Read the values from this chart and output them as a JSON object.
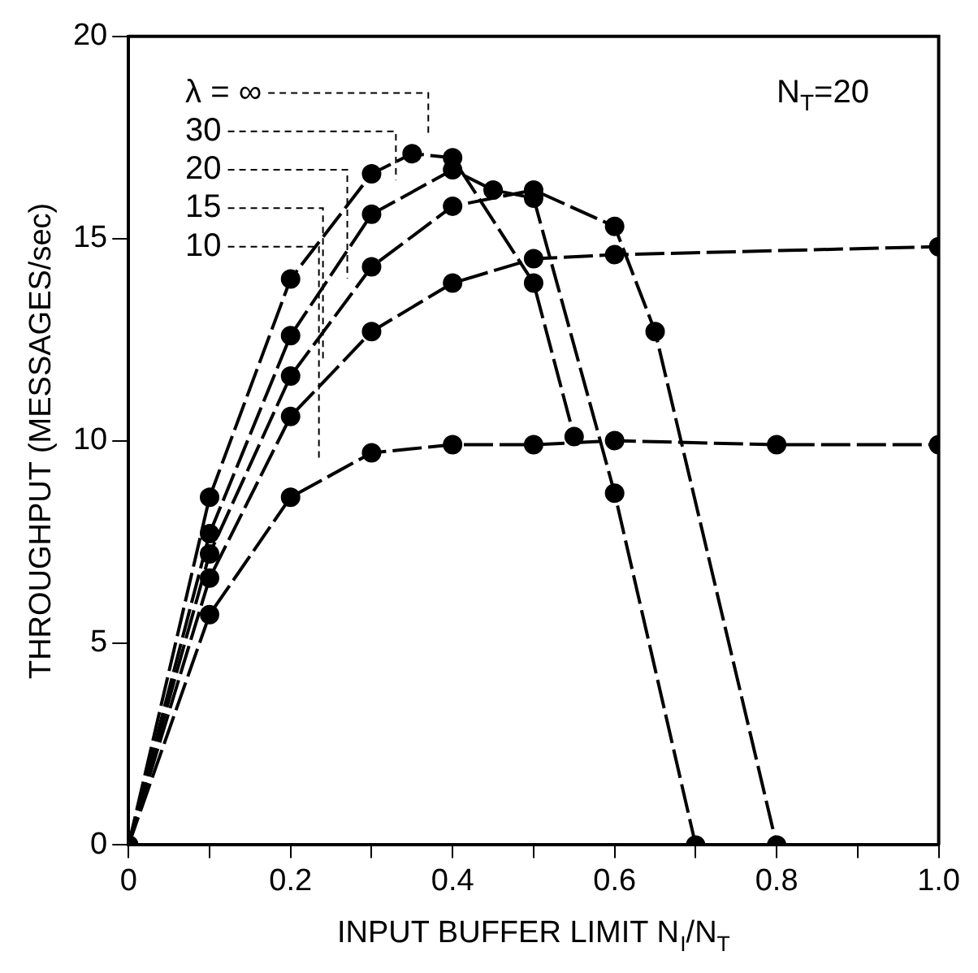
{
  "chart_data": {
    "type": "line",
    "xlabel": "INPUT BUFFER LIMIT N$_{I}$/N$_{T}$",
    "ylabel": "THROUGHPUT (MESSAGES/sec)",
    "annotations": [
      "N$_{T}$=20"
    ],
    "xlim": [
      0,
      1
    ],
    "ylim": [
      0,
      20
    ],
    "xticks": [
      0,
      {
        "value": 0.1,
        "label": null
      },
      0.2,
      {
        "value": 0.3,
        "label": null
      },
      0.4,
      {
        "value": 0.5,
        "label": null
      },
      0.6,
      {
        "value": 0.7,
        "label": null
      },
      0.8,
      {
        "value": 0.9,
        "label": null
      },
      {
        "value": 1,
        "label": "1.0"
      }
    ],
    "yticks": [
      0,
      5,
      10,
      15,
      20
    ],
    "grid": false,
    "legend": "top left",
    "marker": "circle",
    "line_style": "dashed",
    "series": [
      {
        "name": "λ = ∞",
        "color": "#000000",
        "x": [
          0,
          0.1,
          0.2,
          0.3,
          0.35,
          0.4,
          0.5,
          0.55
        ],
        "values": [
          0,
          8.6,
          14.0,
          16.6,
          17.1,
          17.0,
          13.9,
          10.1
        ]
      },
      {
        "name": "30",
        "color": "#000000",
        "x": [
          0,
          0.1,
          0.2,
          0.3,
          0.4,
          0.45,
          0.5,
          0.6,
          0.7
        ],
        "values": [
          0,
          7.7,
          12.6,
          15.6,
          16.7,
          16.2,
          16.0,
          8.7,
          0
        ]
      },
      {
        "name": "20",
        "color": "#000000",
        "x": [
          0,
          0.1,
          0.2,
          0.3,
          0.4,
          0.5,
          0.6,
          0.65,
          0.8
        ],
        "values": [
          0,
          7.2,
          11.6,
          14.3,
          15.8,
          16.2,
          15.3,
          12.7,
          0
        ]
      },
      {
        "name": "15",
        "color": "#000000",
        "x": [
          0,
          0.1,
          0.2,
          0.3,
          0.4,
          0.5,
          0.6,
          1.0
        ],
        "values": [
          0,
          6.6,
          10.6,
          12.7,
          13.9,
          14.5,
          14.6,
          14.8
        ]
      },
      {
        "name": "10",
        "color": "#000000",
        "x": [
          0,
          0.1,
          0.2,
          0.3,
          0.4,
          0.5,
          0.6,
          0.8,
          1.0
        ],
        "values": [
          0,
          5.7,
          8.6,
          9.7,
          9.9,
          9.9,
          10.0,
          9.9,
          9.9
        ]
      }
    ]
  }
}
